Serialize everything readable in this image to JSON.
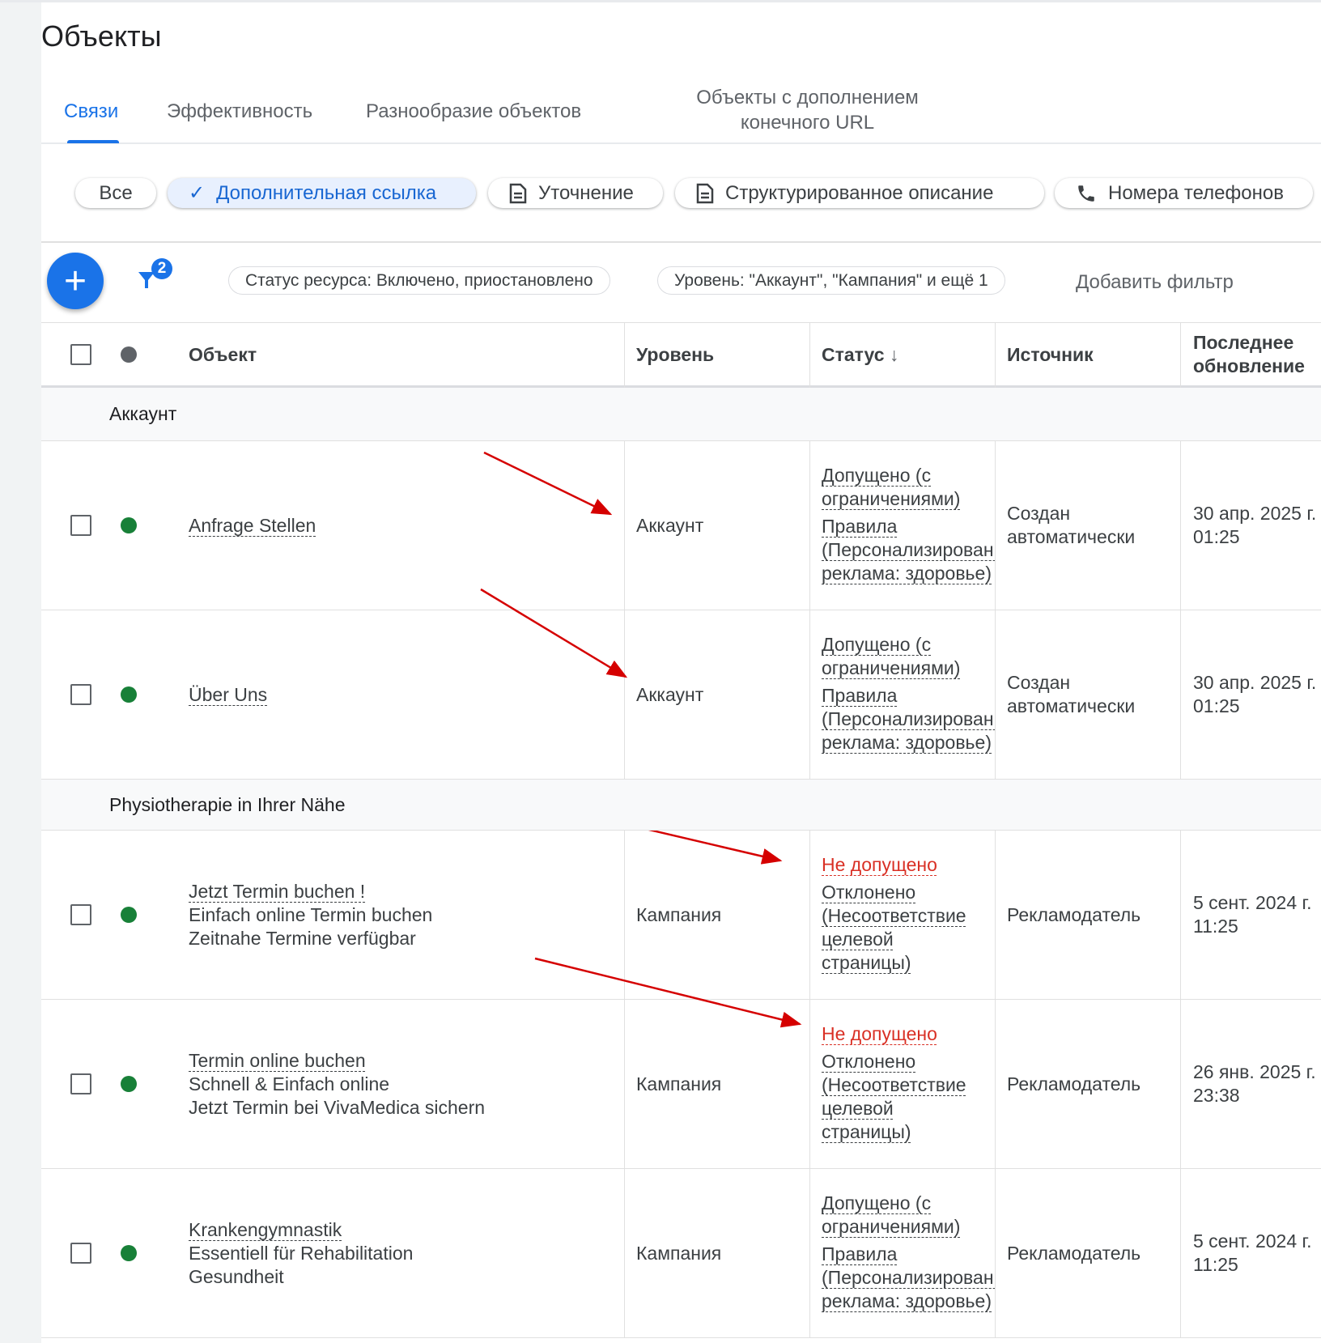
{
  "page_title": "Объекты",
  "tabs": [
    {
      "label": "Связи",
      "active": true
    },
    {
      "label": "Эффективность"
    },
    {
      "label": "Разнообразие объектов"
    },
    {
      "label_line1": "Объекты с дополнением",
      "label_line2": "конечного URL"
    }
  ],
  "chips": [
    {
      "label": "Все"
    },
    {
      "label": "Дополнительная ссылка",
      "selected": true,
      "icon": "check-icon"
    },
    {
      "label": "Уточнение",
      "icon": "document-icon"
    },
    {
      "label": "Структурированное описание",
      "icon": "document-icon"
    },
    {
      "label": "Номера телефонов",
      "icon": "phone-icon"
    }
  ],
  "toolbar": {
    "filter_count": "2",
    "filters": [
      "Статус ресурса: Включено, приостановлено",
      "Уровень: \"Аккаунт\", \"Кампания\" и ещё 1"
    ],
    "add_filter": "Добавить фильтр"
  },
  "columns": {
    "object": "Объект",
    "level": "Уровень",
    "status": "Статус",
    "source": "Источник",
    "updated_line1": "Последнее",
    "updated_line2": "обновление"
  },
  "groups": [
    "Аккаунт",
    "Physiotherapie in Ihrer Nähe"
  ],
  "rows": [
    {
      "title": "Anfrage Stellen",
      "lines": [],
      "level": "Аккаунт",
      "status": "Допущено (с ограничениями)",
      "status_lines": [
        "Допущено (с",
        "ограничениями)"
      ],
      "reason_lines": [
        "Правила",
        "(Персонализированная",
        "реклама: здоровье)"
      ],
      "source_lines": [
        "Создан",
        "автоматически"
      ],
      "date": "30 апр. 2025 г.",
      "time": "01:25"
    },
    {
      "title": "Über Uns",
      "lines": [],
      "level": "Аккаунт",
      "status_lines": [
        "Допущено (с",
        "ограничениями)"
      ],
      "reason_lines": [
        "Правила",
        "(Персонализированная",
        "реклама: здоровье)"
      ],
      "source_lines": [
        "Создан",
        "автоматически"
      ],
      "date": "30 апр. 2025 г.",
      "time": "01:25"
    },
    {
      "title": "Jetzt Termin buchen !",
      "lines": [
        "Einfach online Termin buchen",
        "Zeitnahe Termine verfügbar"
      ],
      "level": "Кампания",
      "status_lines": [
        "Не допущено"
      ],
      "disapproved": true,
      "reason_lines": [
        "Отклонено",
        "(Несоответствие",
        "целевой",
        "страницы)"
      ],
      "source_lines": [
        "Рекламодатель"
      ],
      "date": "5 сент. 2024 г.",
      "time": "11:25"
    },
    {
      "title": "Termin online buchen",
      "lines": [
        "Schnell & Einfach online",
        "Jetzt Termin bei VivaMedica sichern"
      ],
      "level": "Кампания",
      "status_lines": [
        "Не допущено"
      ],
      "disapproved": true,
      "reason_lines": [
        "Отклонено",
        "(Несоответствие",
        "целевой",
        "страницы)"
      ],
      "source_lines": [
        "Рекламодатель"
      ],
      "date": "26 янв. 2025 г.",
      "time": "23:38"
    },
    {
      "title": "Krankengymnastik",
      "lines": [
        "Essentiell für Rehabilitation",
        "Gesundheit"
      ],
      "level": "Кампания",
      "status_lines": [
        "Допущено (с",
        "ограничениями)"
      ],
      "reason_lines": [
        "Правила",
        "(Персонализированная",
        "реклама: здоровье)"
      ],
      "source_lines": [
        "Рекламодатель"
      ],
      "date": "5 сент. 2024 г.",
      "time": "11:25"
    }
  ],
  "colors": {
    "accent": "#1a73e8",
    "enabled": "#188038",
    "disapproved": "#d93025",
    "annotation_arrow": "#d50000"
  }
}
